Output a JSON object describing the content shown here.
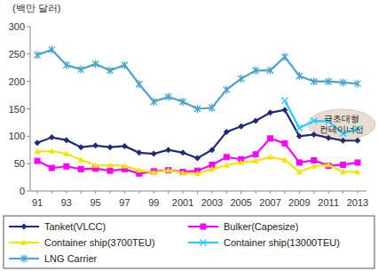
{
  "chart_data": {
    "type": "line",
    "y_label": "(백만 달러)",
    "annotation": "극초대형 컨테이너선",
    "categories": [
      "91",
      null,
      "93",
      null,
      "95",
      null,
      "97",
      null,
      "99",
      null,
      "2001",
      null,
      "2003",
      null,
      "2005",
      null,
      "2007",
      null,
      "2009",
      null,
      "2011",
      null,
      "2013"
    ],
    "ylim": [
      0,
      300
    ],
    "yticks": [
      0,
      50,
      100,
      150,
      200,
      250,
      300
    ],
    "grid": false,
    "legend": "bottom",
    "series": [
      {
        "name": "Tanket(VLCC)",
        "color": "#1f2a78",
        "marker": "diamond",
        "values": [
          88,
          98,
          93,
          80,
          83,
          80,
          82,
          70,
          68,
          75,
          70,
          60,
          75,
          108,
          118,
          128,
          143,
          148,
          100,
          103,
          97,
          92,
          92
        ]
      },
      {
        "name": "Bulker(Capesize)",
        "color": "#ff00ff",
        "marker": "square",
        "values": [
          55,
          42,
          45,
          40,
          41,
          37,
          40,
          32,
          36,
          38,
          35,
          37,
          48,
          62,
          58,
          67,
          96,
          87,
          52,
          56,
          46,
          48,
          52
        ]
      },
      {
        "name": "Container ship(3700TEU)",
        "color": "#f2e600",
        "marker": "triangle",
        "values": [
          72,
          73,
          68,
          57,
          47,
          47,
          46,
          38,
          34,
          38,
          33,
          32,
          40,
          47,
          52,
          55,
          62,
          57,
          35,
          45,
          48,
          35,
          35
        ]
      },
      {
        "name": "Container ship(13000TEU)",
        "color": "#22ccff",
        "marker": "x",
        "values": [
          null,
          null,
          null,
          null,
          null,
          null,
          null,
          null,
          null,
          null,
          null,
          null,
          null,
          null,
          null,
          null,
          null,
          165,
          115,
          128,
          127,
          105,
          113
        ]
      },
      {
        "name": "LNG Carrier",
        "color": "#4aa3cc",
        "marker": "asterisk",
        "values": [
          248,
          258,
          230,
          222,
          232,
          220,
          230,
          195,
          163,
          172,
          163,
          150,
          152,
          185,
          205,
          220,
          220,
          245,
          210,
          200,
          200,
          198,
          196
        ]
      }
    ]
  }
}
